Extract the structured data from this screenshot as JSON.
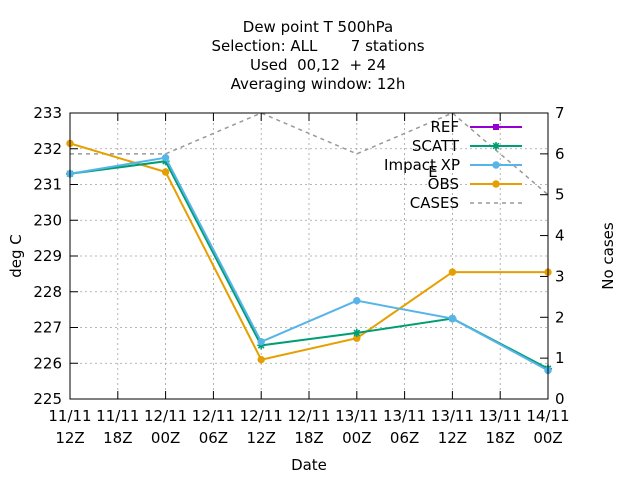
{
  "chart_data": {
    "type": "line",
    "title_lines": [
      "Dew point T 500hPa",
      "Selection: ALL       7 stations",
      "Used  00,12  + 24",
      "Averaging window: 12h"
    ],
    "xlabel": "Date",
    "ylabel": "deg C",
    "y2label": "No cases",
    "ylim": [
      225,
      233
    ],
    "y2lim": [
      0,
      7
    ],
    "yticks": [
      225,
      226,
      227,
      228,
      229,
      230,
      231,
      232,
      233
    ],
    "y2ticks": [
      0,
      1,
      2,
      3,
      4,
      5,
      6,
      7
    ],
    "xticks": [
      {
        "top": "11/11",
        "bottom": "12Z"
      },
      {
        "top": "11/11",
        "bottom": "18Z"
      },
      {
        "top": "12/11",
        "bottom": "00Z"
      },
      {
        "top": "12/11",
        "bottom": "06Z"
      },
      {
        "top": "12/11",
        "bottom": "12Z"
      },
      {
        "top": "12/11",
        "bottom": "18Z"
      },
      {
        "top": "13/11",
        "bottom": "00Z"
      },
      {
        "top": "13/11",
        "bottom": "06Z"
      },
      {
        "top": "13/11",
        "bottom": "12Z"
      },
      {
        "top": "13/11",
        "bottom": "18Z"
      },
      {
        "top": "14/11",
        "bottom": "00Z"
      }
    ],
    "grid": true,
    "legend_position": "top-right",
    "series": [
      {
        "name": "REF",
        "color": "#9400d3",
        "marker": "square",
        "axis": "y",
        "points": []
      },
      {
        "name": "SCATT",
        "color": "#009e73",
        "marker": "star",
        "axis": "y",
        "points": [
          [
            0,
            231.3
          ],
          [
            1,
            231.65
          ],
          [
            2,
            226.5
          ],
          [
            3,
            226.85
          ],
          [
            4,
            227.25
          ],
          [
            5,
            225.85
          ]
        ]
      },
      {
        "name": "Impact_EXP",
        "legend_text": "Impact  XP",
        "legend_sub": "E",
        "color": "#56b4e9",
        "marker": "circle",
        "axis": "y",
        "points": [
          [
            0,
            231.3
          ],
          [
            1,
            231.75
          ],
          [
            2,
            226.6
          ],
          [
            3,
            227.75
          ],
          [
            4,
            227.25
          ],
          [
            5,
            225.8
          ]
        ]
      },
      {
        "name": "OBS",
        "color": "#e69f00",
        "marker": "circle",
        "axis": "y",
        "points": [
          [
            0,
            232.15
          ],
          [
            1,
            231.35
          ],
          [
            2,
            226.1
          ],
          [
            3,
            226.7
          ],
          [
            4,
            228.55
          ],
          [
            5,
            228.55
          ]
        ]
      },
      {
        "name": "CASES",
        "color": "#999999",
        "dashed": true,
        "axis": "y2",
        "points": [
          [
            0,
            6
          ],
          [
            1,
            6
          ],
          [
            2,
            7
          ],
          [
            3,
            6
          ],
          [
            4,
            7
          ],
          [
            5,
            5
          ]
        ]
      }
    ]
  }
}
